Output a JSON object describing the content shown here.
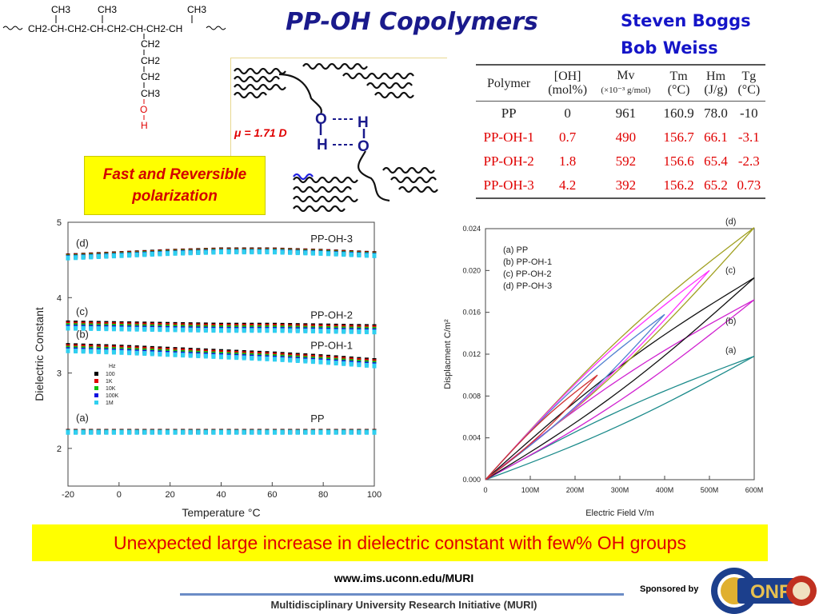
{
  "title": "PP-OH Copolymers",
  "authors": [
    "Steven Boggs",
    "Bob Weiss"
  ],
  "structure": {
    "backbone": "CH2-CH-CH2-CH-CH2-CH-CH2-CH",
    "side_groups": [
      "CH3",
      "CH3",
      "CH3"
    ],
    "chain": [
      "CH2",
      "CH2",
      "CH2",
      "CH3",
      "O",
      "H"
    ]
  },
  "hbond_diagram": {
    "dipole": "μ = 1.71 D",
    "atoms": [
      "O",
      "H",
      "H",
      "O"
    ]
  },
  "fast_box": {
    "line1": "Fast and Reversible",
    "line2": "polarization"
  },
  "table": {
    "headers": [
      {
        "line1": "Polymer",
        "line2": ""
      },
      {
        "line1": "[OH]",
        "line2": "(mol%)"
      },
      {
        "line1": "Mv",
        "line2": "(×10⁻³ g/mol)"
      },
      {
        "line1": "Tm",
        "line2": "(°C)"
      },
      {
        "line1": "Hm",
        "line2": "(J/g)"
      },
      {
        "line1": "Tg",
        "line2": "(°C)"
      }
    ],
    "rows": [
      [
        "PP",
        "0",
        "961",
        "160.9",
        "78.0",
        "-10"
      ],
      [
        "PP-OH-1",
        "0.7",
        "490",
        "156.7",
        "66.1",
        "-3.1"
      ],
      [
        "PP-OH-2",
        "1.8",
        "592",
        "156.6",
        "65.4",
        "-2.3"
      ],
      [
        "PP-OH-3",
        "4.2",
        "392",
        "156.2",
        "65.2",
        "0.73"
      ]
    ]
  },
  "chart_data": [
    {
      "type": "scatter",
      "xlabel": "Temperature °C",
      "ylabel": "Dielectric Constant",
      "xlim": [
        -20,
        100
      ],
      "ylim": [
        1.5,
        5
      ],
      "xticks": [
        "-20",
        "0",
        "20",
        "40",
        "60",
        "80",
        "100"
      ],
      "yticks": [
        "2",
        "3",
        "4",
        "5"
      ],
      "legend": {
        "title": "Hz",
        "entries": [
          "100",
          "1K",
          "10K",
          "100K",
          "1M"
        ],
        "colors": [
          "#000000",
          "#e00000",
          "#10c010",
          "#1010e0",
          "#30d0f0"
        ],
        "placement": "left-middle"
      },
      "series": [
        {
          "name": "PP",
          "tag": "(a)",
          "x": [
            -20,
            100
          ],
          "y": [
            2.22,
            2.22
          ]
        },
        {
          "name": "PP-OH-1",
          "tag": "(b)",
          "x": [
            -20,
            0,
            20,
            40,
            60,
            80,
            100
          ],
          "y": [
            3.33,
            3.31,
            3.28,
            3.25,
            3.22,
            3.18,
            3.13
          ]
        },
        {
          "name": "PP-OH-2",
          "tag": "(c)",
          "x": [
            -20,
            0,
            20,
            40,
            60,
            80,
            100
          ],
          "y": [
            3.63,
            3.62,
            3.61,
            3.6,
            3.6,
            3.59,
            3.58
          ]
        },
        {
          "name": "PP-OH-3",
          "tag": "(d)",
          "x": [
            -20,
            0,
            20,
            40,
            60,
            80,
            100
          ],
          "y": [
            4.54,
            4.57,
            4.6,
            4.62,
            4.62,
            4.6,
            4.57
          ]
        }
      ]
    },
    {
      "type": "line",
      "xlabel": "Electric Field V/m",
      "ylabel": "Displacment C/m²",
      "xlim": [
        0,
        600
      ],
      "ylim": [
        0,
        0.024
      ],
      "xticks": [
        "0",
        "100M",
        "200M",
        "300M",
        "400M",
        "500M",
        "600M"
      ],
      "yticks": [
        "0.000",
        "0.004",
        "0.008",
        "0.012",
        "0.016",
        "0.020",
        "0.024"
      ],
      "legend": {
        "entries": [
          "(a) PP",
          "(b) PP-OH-1",
          "(c) PP-OH-2",
          "(d) PP-OH-3"
        ],
        "placement": "top-left"
      },
      "series": [
        {
          "tag": "(a)",
          "x": [
            0,
            600
          ],
          "y": [
            0,
            0.0118
          ],
          "color": "#1a8a8a"
        },
        {
          "tag": "(b)",
          "x": [
            0,
            300,
            600
          ],
          "y": [
            0,
            0.0095,
            0.0172
          ],
          "color": "#d020d0"
        },
        {
          "tag": "(c)",
          "x": [
            0,
            300,
            600
          ],
          "y": [
            0,
            0.0107,
            0.0193
          ],
          "color": "#111111"
        },
        {
          "tag": "(d)",
          "x": [
            0,
            300,
            600
          ],
          "y": [
            0,
            0.014,
            0.0241
          ],
          "color": "#a0a020"
        },
        {
          "tag": "",
          "x": [
            0,
            250,
            500
          ],
          "y": [
            0,
            0.011,
            0.02
          ],
          "color": "#ff30ff"
        },
        {
          "tag": "",
          "x": [
            0,
            200,
            400
          ],
          "y": [
            0,
            0.0087,
            0.0158
          ],
          "color": "#5080d0"
        },
        {
          "tag": "",
          "x": [
            0,
            150,
            250
          ],
          "y": [
            0,
            0.0066,
            0.01
          ],
          "color": "#d03030"
        }
      ]
    }
  ],
  "bottom_text": "Unexpected large increase in dielectric constant with few% OH groups",
  "footer": {
    "url": "www.ims.uconn.edu/MURI",
    "program": "Multidisciplinary University Research Initiative (MURI)",
    "sponsored": "Sponsored by",
    "logo_text": "ONR",
    "logo_ring": "DEPARTMENT OF THE NAVY · Science & Technology"
  }
}
